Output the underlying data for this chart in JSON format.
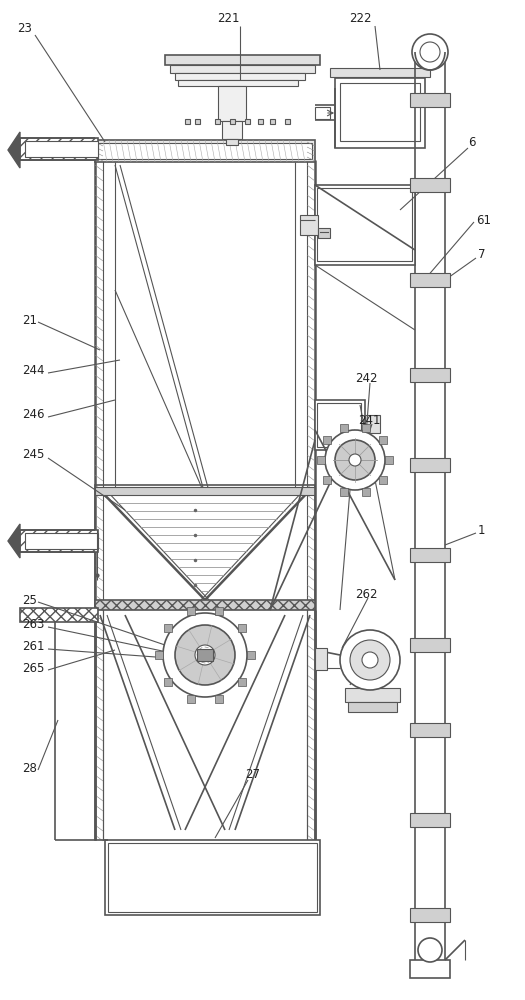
{
  "bg_color": "#ffffff",
  "line_color": "#555555",
  "fig_width": 5.25,
  "fig_height": 10.0,
  "dpi": 100
}
